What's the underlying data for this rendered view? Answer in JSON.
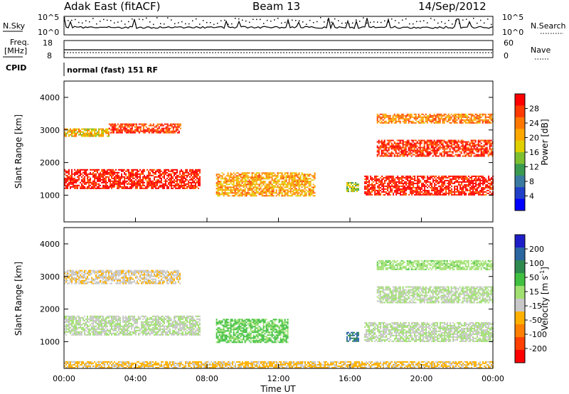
{
  "header": {
    "station": "Adak East (fitACF)",
    "beam": "Beam 13",
    "date": "14/Sep/2012"
  },
  "noise_panel": {
    "left_label": "N.Sky",
    "left_ticks": [
      "10^5",
      "10^0"
    ],
    "right_label": "N.Search",
    "right_ticks": [
      "10^5",
      "10^0"
    ]
  },
  "freq_panel": {
    "left_label_1": "Freq.",
    "left_label_2": "[MHz]",
    "left_ticks": [
      "18",
      "8"
    ],
    "right_label": "Nave",
    "right_ticks": [
      "60",
      "0"
    ]
  },
  "cpid": {
    "label": "CPID",
    "value": "normal (fast) 151 RF"
  },
  "x_axis": {
    "label": "Time UT",
    "ticks": [
      "00:00",
      "04:00",
      "08:00",
      "12:00",
      "16:00",
      "20:00",
      "00:00"
    ]
  },
  "power_panel": {
    "ylabel": "Slant Range [km]",
    "yticks": [
      "4000",
      "3000",
      "2000",
      "1000"
    ],
    "colorbar_label": "Power [dB]",
    "colorbar_ticks": [
      "28",
      "24",
      "20",
      "16",
      "12",
      "8",
      "4"
    ],
    "colorbar_colors": [
      "#ff0000",
      "#ff3a00",
      "#ff7700",
      "#ffa800",
      "#e0d000",
      "#7fc030",
      "#3a9a50",
      "#3a7aa0",
      "#2040c8",
      "#0000ff"
    ]
  },
  "velocity_panel": {
    "ylabel": "Slant Range [km]",
    "yticks": [
      "4000",
      "3000",
      "2000",
      "1000"
    ],
    "colorbar_label": "Velocity [m s",
    "colorbar_label_sup": "-1",
    "colorbar_label_end": "]",
    "colorbar_ticks": [
      "200",
      "100",
      "50",
      "15",
      "-15",
      "-50",
      "-100",
      "-200"
    ],
    "colorbar_colors": [
      "#1e1ec8",
      "#2a66a0",
      "#2f8a50",
      "#40c040",
      "#a0e070",
      "#c8c8c8",
      "#ffb000",
      "#ff8000",
      "#ff4000",
      "#ff0000"
    ]
  },
  "chart_data": {
    "type": "heatmap",
    "title": "Adak East (fitACF)",
    "xlabel": "Time UT",
    "ylabel": "Slant Range [km]",
    "x_unit": "hours UT",
    "xlim": [
      0,
      24
    ],
    "ylim": [
      180,
      4500
    ],
    "power_dB_range": [
      0,
      30
    ],
    "velocity_range_m_s": [
      -250,
      250
    ],
    "power_features": [
      {
        "t0": 0.0,
        "t1": 7.6,
        "r0": 1200,
        "r1": 1800,
        "power_dB": 28
      },
      {
        "t0": 0.0,
        "t1": 2.5,
        "r0": 2800,
        "r1": 3050,
        "power_dB": 18
      },
      {
        "t0": 2.5,
        "t1": 6.5,
        "r0": 2900,
        "r1": 3200,
        "power_dB": 26
      },
      {
        "t0": 8.5,
        "t1": 14.0,
        "r0": 1000,
        "r1": 1700,
        "power_dB": 20
      },
      {
        "t0": 15.8,
        "t1": 16.5,
        "r0": 1100,
        "r1": 1400,
        "power_dB": 14
      },
      {
        "t0": 16.8,
        "t1": 24.0,
        "r0": 1000,
        "r1": 1600,
        "power_dB": 28
      },
      {
        "t0": 17.5,
        "t1": 24.0,
        "r0": 2200,
        "r1": 2700,
        "power_dB": 27
      },
      {
        "t0": 17.5,
        "t1": 24.0,
        "r0": 3200,
        "r1": 3500,
        "power_dB": 22
      }
    ],
    "velocity_features": [
      {
        "t0": 0.0,
        "t1": 7.6,
        "r0": 1200,
        "r1": 1800,
        "velocity_m_s": 0
      },
      {
        "t0": 0.0,
        "t1": 6.5,
        "r0": 2800,
        "r1": 3200,
        "velocity_m_s": -40
      },
      {
        "t0": 8.5,
        "t1": 12.5,
        "r0": 1000,
        "r1": 1700,
        "velocity_m_s": 60
      },
      {
        "t0": 15.8,
        "t1": 16.5,
        "r0": 1000,
        "r1": 1300,
        "velocity_m_s": 150
      },
      {
        "t0": 16.8,
        "t1": 24.0,
        "r0": 1000,
        "r1": 1600,
        "velocity_m_s": 0
      },
      {
        "t0": 17.5,
        "t1": 24.0,
        "r0": 2200,
        "r1": 2700,
        "velocity_m_s": 0
      },
      {
        "t0": 17.5,
        "t1": 24.0,
        "r0": 3200,
        "r1": 3500,
        "velocity_m_s": 30
      },
      {
        "t0": 0.0,
        "t1": 24.0,
        "r0": 200,
        "r1": 400,
        "velocity_m_s": -60
      }
    ]
  }
}
